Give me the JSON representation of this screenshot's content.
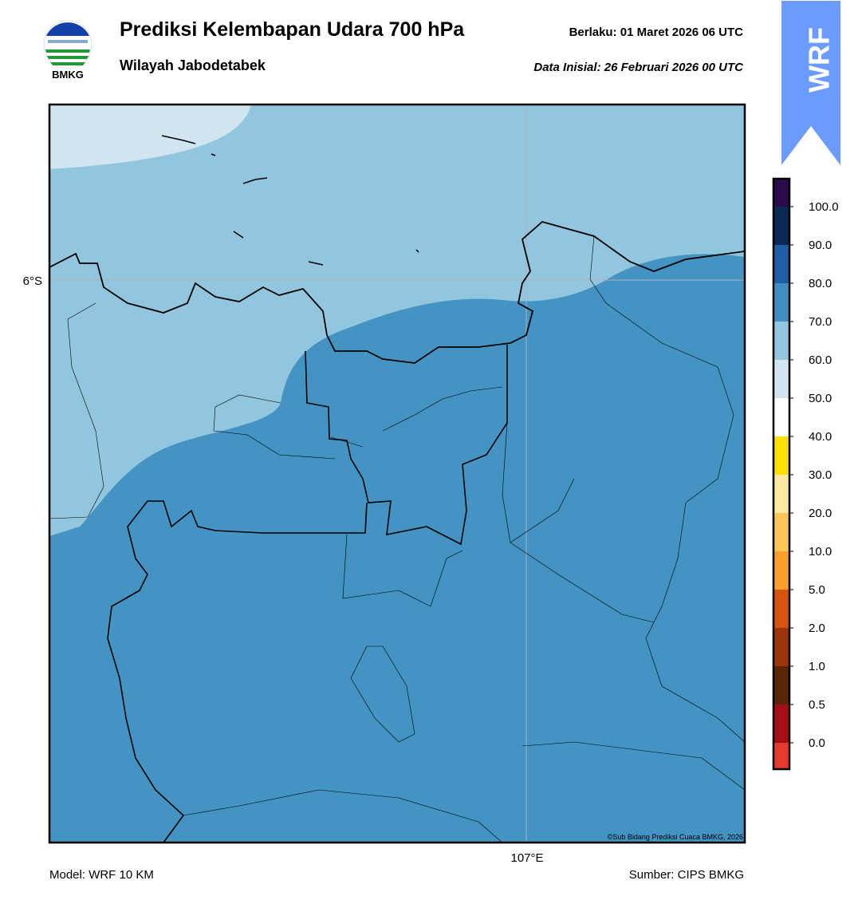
{
  "header": {
    "title": "Prediksi Kelembapan Udara 700 hPa",
    "subtitle": "Wilayah Jabodetabek",
    "valid": "Berlaku:  01 Maret 2026 06 UTC",
    "initial": "Data Inisial:  26 Februari 2026 00 UTC",
    "logo_text": "BMKG",
    "badge": "WRF"
  },
  "map": {
    "lat_label": "6°S",
    "lon_label": "107°E",
    "credit": "©Sub Bidang Prediksi Cuaca BMKG, 2026"
  },
  "colorbar": {
    "labels": [
      "100.0",
      "90.0",
      "80.0",
      "70.0",
      "60.0",
      "50.0",
      "40.0",
      "30.0",
      "20.0",
      "10.0",
      "5.0",
      "2.0",
      "1.0",
      "0.5",
      "0.0"
    ],
    "colors": [
      "#2d0a4a",
      "#0a2a55",
      "#1f5fa6",
      "#3f8fc3",
      "#92c5de",
      "#d1e5f0",
      "#ffffff",
      "#ffe000",
      "#ffe9a0",
      "#ffc757",
      "#ff9f2b",
      "#d85210",
      "#9c3509",
      "#5b2508",
      "#a50f15",
      "#e8392e"
    ]
  },
  "footer": {
    "model": "Model: WRF 10 KM",
    "source": "Sumber: CIPS BMKG"
  }
}
